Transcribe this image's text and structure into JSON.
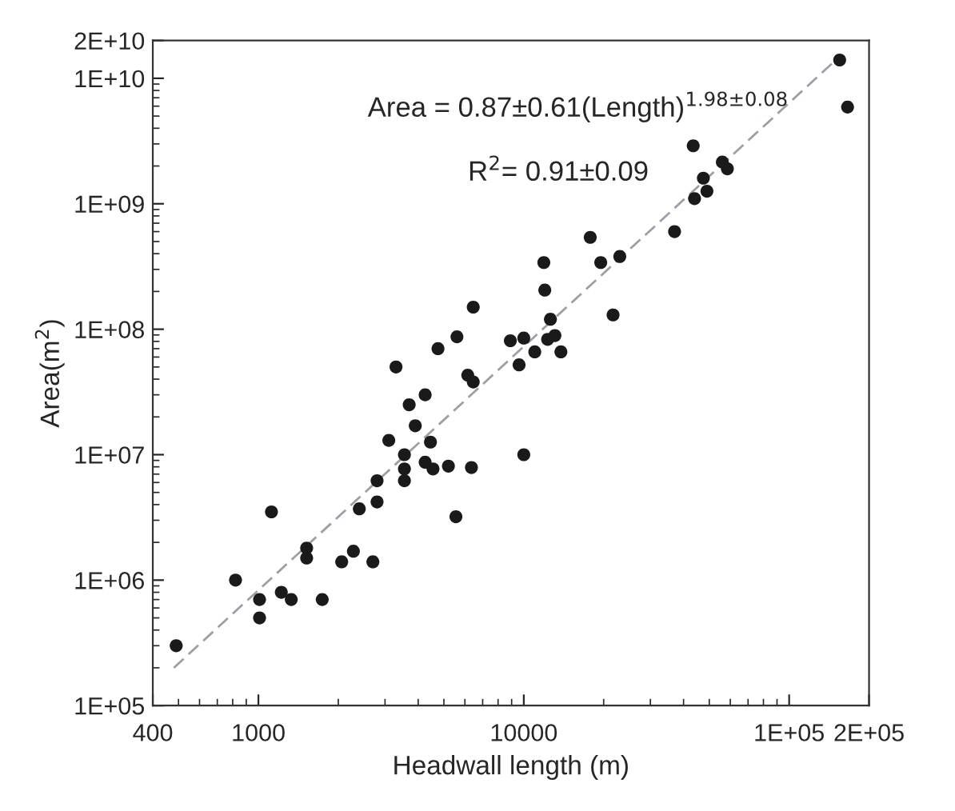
{
  "chart_data": {
    "type": "scatter",
    "xlabel": "Headwall length (m)",
    "ylabel": "Area(m$^{2}$)",
    "annotations": [
      "Area = 0.87±0.61(Length)$^{1.98±0.08}$",
      "R$^{2}$= 0.91±0.09"
    ],
    "log": "xy",
    "grid": false,
    "marker": "circle",
    "xlim": [
      400,
      200000
    ],
    "ylim": [
      100000,
      20000000000
    ],
    "xticks": [
      400,
      1000,
      10000,
      {
        "value": 100000,
        "label": "1E+05"
      },
      {
        "value": 200000,
        "label": "2E+05"
      }
    ],
    "yticks": [
      {
        "value": 100000,
        "label": "1E+05"
      },
      {
        "value": 1000000,
        "label": "1E+06"
      },
      {
        "value": 10000000,
        "label": "1E+07"
      },
      {
        "value": 100000000,
        "label": "1E+08"
      },
      {
        "value": 1000000000,
        "label": "1E+09"
      },
      {
        "value": 10000000000,
        "label": "1E+10"
      },
      {
        "value": 20000000000,
        "label": "2E+10"
      }
    ],
    "series": [
      {
        "color": "#1a1a1a",
        "x": [
          490,
          820,
          1010,
          1010,
          1120,
          1220,
          1330,
          1520,
          1520,
          1740,
          2060,
          2280,
          2400,
          2700,
          2800,
          2800,
          3100,
          3550,
          3550,
          3550,
          3700,
          3900,
          4250,
          4250,
          4450,
          4550,
          5200,
          5550,
          6350,
          10000,
          17800,
          23000,
          19500,
          11900,
          12000,
          21700,
          6450,
          12600,
          12300,
          13100,
          8900,
          10000,
          11000,
          13800,
          9600,
          5600,
          4750,
          3300,
          6150,
          6450,
          155000,
          166000,
          43500,
          56000,
          58500,
          47500,
          49000,
          44000,
          37000
        ],
        "values": [
          300000,
          1000000,
          700000,
          500000,
          3500000,
          800000,
          700000,
          1800000,
          1500000,
          700000,
          1400000,
          1700000,
          3700000,
          1400000,
          4200000,
          6200000,
          13000000,
          6200000,
          7700000,
          10000000,
          25000000,
          17000000,
          30000000,
          8700000,
          12600000,
          7700000,
          8100000,
          3200000,
          7900000,
          10000000,
          540000000,
          380000000,
          340000000,
          340000000,
          205000000,
          130000000,
          150000000,
          120000000,
          83000000,
          89000000,
          81000000,
          85000000,
          66000000,
          66000000,
          52000000,
          87000000,
          70000000,
          50000000,
          43000000,
          38000000,
          14000000000,
          5900000000,
          2900000000,
          2150000000,
          1900000000,
          1600000000,
          1260000000,
          1100000000,
          600000000
        ]
      },
      {
        "type": "line",
        "color": "#9aa0a8",
        "line_style": "dashed",
        "marker": "none",
        "x": [
          480,
          150000
        ],
        "values": [
          200000,
          14000000000
        ]
      }
    ]
  }
}
